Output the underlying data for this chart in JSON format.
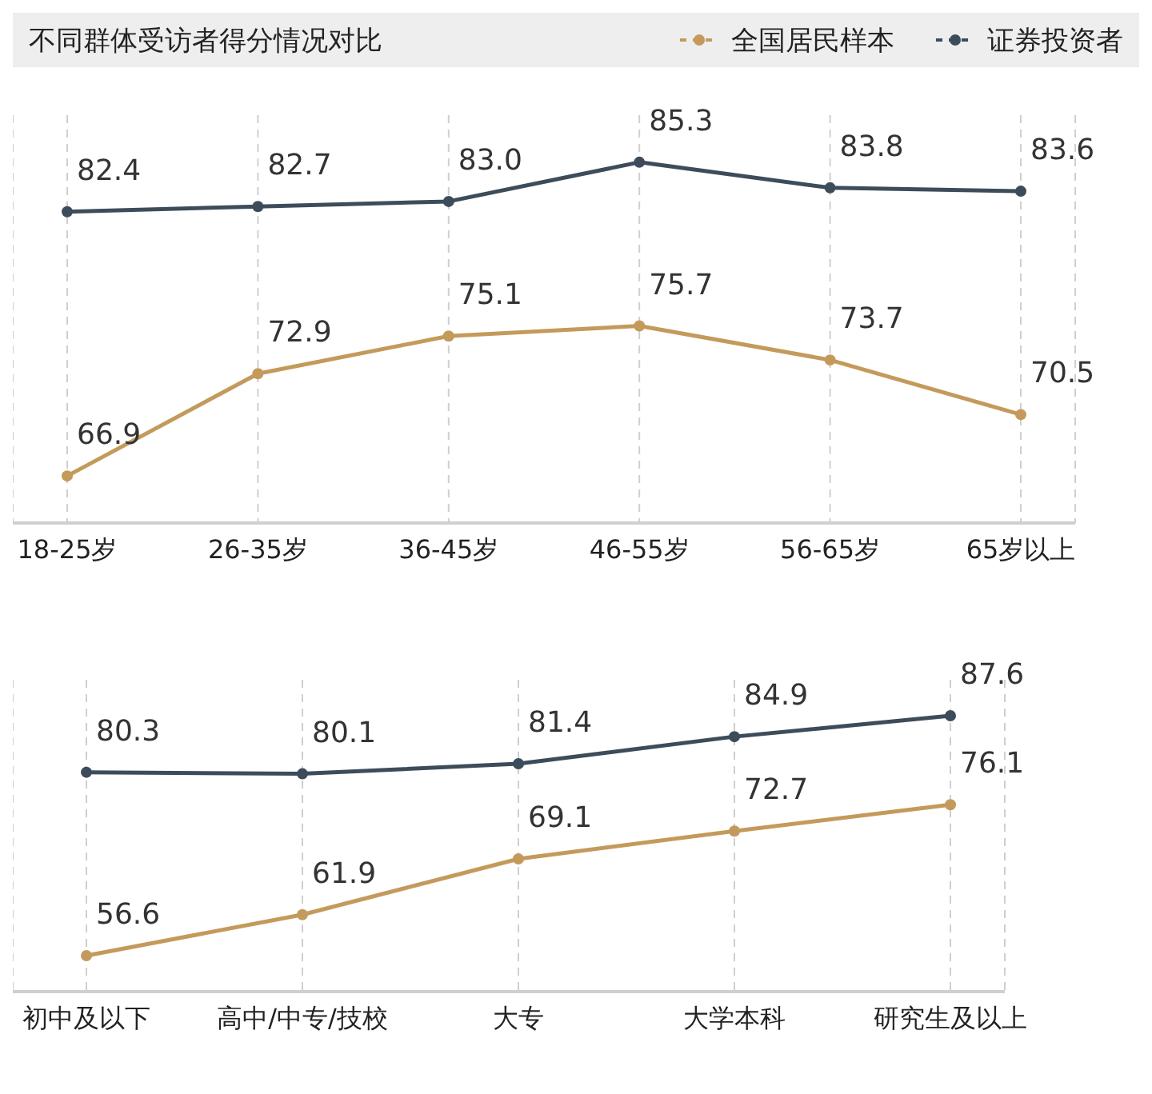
{
  "chart_data": [
    {
      "type": "line",
      "title": "不同群体受访者得分情况对比",
      "legend": "top right",
      "grid": "x",
      "marker": "circle",
      "categories": [
        "18-25岁",
        "26-35岁",
        "36-45岁",
        "46-55岁",
        "56-65岁",
        "65岁以上"
      ],
      "series": [
        {
          "name": "全国居民样本",
          "color": "#c49a5c",
          "values": [
            66.9,
            72.9,
            75.1,
            75.7,
            73.7,
            70.5
          ],
          "value_labels": [
            "66.9",
            "72.9",
            "75.1",
            "75.7",
            "73.7",
            "70.5"
          ]
        },
        {
          "name": "证券投资者",
          "color": "#3d4c5b",
          "values": [
            82.4,
            82.7,
            83.0,
            85.3,
            83.8,
            83.6
          ],
          "value_labels": [
            "82.4",
            "82.7",
            "83.0",
            "85.3",
            "83.8",
            "83.6"
          ]
        }
      ]
    },
    {
      "type": "line",
      "grid": "x",
      "marker": "circle",
      "data_labels": true,
      "categories": [
        "初中及以下",
        "高中/中专/技校",
        "大专",
        "大学本科",
        "研究生及以上"
      ],
      "series": [
        {
          "color": "#c49a5c",
          "values": [
            56.6,
            61.9,
            69.1,
            72.7,
            76.1
          ]
        },
        {
          "color": "#3d4c5b",
          "values": [
            80.3,
            80.1,
            81.4,
            84.9,
            87.6
          ]
        }
      ]
    }
  ]
}
